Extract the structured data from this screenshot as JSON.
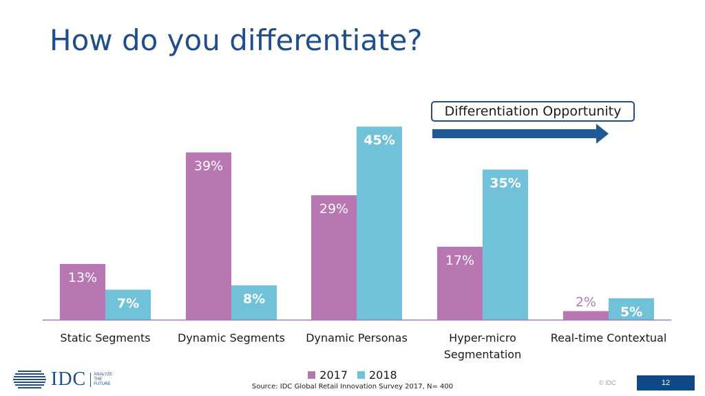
{
  "slide": {
    "title": "How do you differentiate?",
    "callout": "Differentiation Opportunity",
    "source": "Source: IDC Global Retail Innovation Survey 2017, N= 400",
    "copyright": "© IDC",
    "page_number": "12"
  },
  "logo": {
    "text": "IDC",
    "tagline": [
      "ANALYZE",
      "THE",
      "FUTURE"
    ]
  },
  "colors": {
    "title": "#1f4e8c",
    "series_2017": "#b877b2",
    "series_2018": "#71c2d8",
    "axis": "#9b7bb5",
    "arrow": "#1f5a96",
    "page_number_bg": "#0f4a86"
  },
  "chart_data": {
    "type": "bar",
    "title": "",
    "xlabel": "",
    "ylabel": "",
    "ylim": [
      0,
      50
    ],
    "grid": false,
    "legend_position": "bottom",
    "categories": [
      [
        "Static Segments"
      ],
      [
        "Dynamic Segments"
      ],
      [
        "Dynamic Personas"
      ],
      [
        "Hyper-micro",
        "Segmentation"
      ],
      [
        "Real-time Contextual"
      ]
    ],
    "series": [
      {
        "name": "2017",
        "values": [
          13,
          39,
          29,
          17,
          2
        ],
        "labels": [
          "13%",
          "39%",
          "29%",
          "17%",
          "2%"
        ],
        "label_color": "#ffffff",
        "label_bold": false
      },
      {
        "name": "2018",
        "values": [
          7,
          8,
          45,
          35,
          5
        ],
        "labels": [
          "7%",
          "8%",
          "45%",
          "35%",
          "5%"
        ],
        "label_color": "#ffffff",
        "label_bold": true
      }
    ]
  }
}
